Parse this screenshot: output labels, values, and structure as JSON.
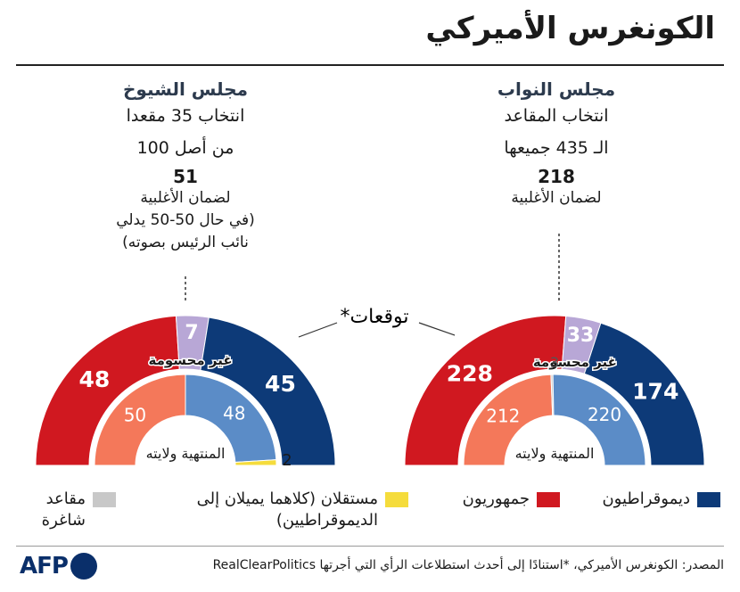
{
  "title": "الكونغرس الأميركي",
  "senate": {
    "heading": "مجلس الشيوخ",
    "line1": "انتخاب 35 مقعدا",
    "line2": "من أصل 100",
    "majority": "51",
    "note1": "لضمان الأغلبية",
    "note2": "(في حال 50-50 يدلي",
    "note3": "نائب الرئيس بصوته)"
  },
  "house": {
    "heading": "مجلس النواب",
    "line1": "انتخاب المقاعد",
    "line2": "الـ 435 جميعها",
    "majority": "218",
    "note1": "لضمان الأغلبية"
  },
  "forecast_label": "توقعات*",
  "tossup_label": "غير محسومة",
  "outgoing_label": "المنتهية ولايته",
  "legend": {
    "democrats": "ديموقراطيون",
    "republicans": "جمهوريون",
    "independents_1": "مستقلان (كلاهما يميلان إلى",
    "independents_2": "الديموقراطيين)",
    "vacant_1": "مقاعد",
    "vacant_2": "شاغرة"
  },
  "colors": {
    "dem_outer": "#0d3a78",
    "rep_outer": "#d01820",
    "tossup": "#b8a7d6",
    "dem_inner": "#5b8cc7",
    "rep_inner": "#f4785a",
    "independent": "#f5dc3c",
    "vacant": "#c8c8c8"
  },
  "source": "المصدر: الكونغرس الأميركي، *استنادًا إلى أحدث استطلاعات الرأي التي أجرتها RealClearPolitics",
  "logo_text": "AFP",
  "chart_data": [
    {
      "type": "semicircle",
      "title": "مجلس الشيوخ",
      "forecast": {
        "republicans": 48,
        "tossup": 7,
        "democrats": 45
      },
      "outgoing": {
        "republicans": 50,
        "democrats": 48,
        "independents": 2
      }
    },
    {
      "type": "semicircle",
      "title": "مجلس النواب",
      "forecast": {
        "republicans": 228,
        "tossup": 33,
        "democrats": 174
      },
      "outgoing": {
        "republicans": 212,
        "vacant": 3,
        "democrats": 220
      }
    }
  ]
}
